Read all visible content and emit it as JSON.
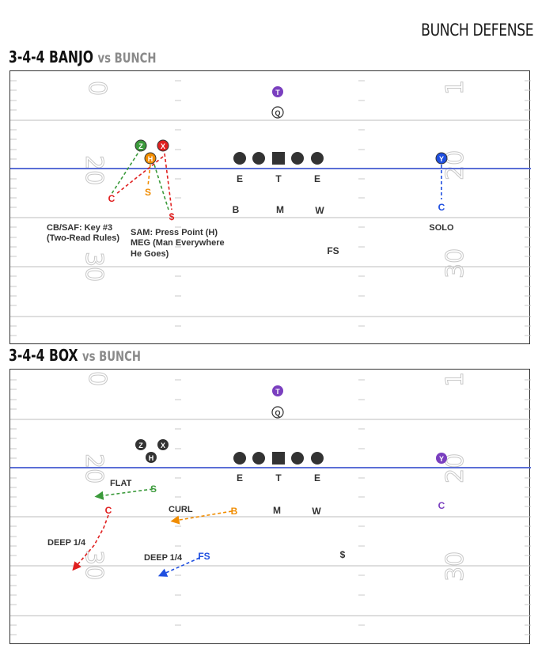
{
  "header": {
    "title": "BUNCH DEFENSE"
  },
  "colors": {
    "los": "#5b6fd6",
    "green": "#3b9a3b",
    "red": "#e02020",
    "orange": "#f08c00",
    "purple": "#7a3fbf",
    "blue": "#1f4fe0",
    "dark": "#333333"
  },
  "panel1": {
    "title_main": "3-4-4 BANJO",
    "title_vs": "vs BUNCH",
    "yard_numbers": [
      "0",
      "20",
      "30",
      "1",
      "20",
      "30"
    ],
    "offense": {
      "T": "T",
      "Q": "Q",
      "Z": "Z",
      "X": "X",
      "H": "H",
      "Y": "Y"
    },
    "front": {
      "E1": "E",
      "T": "T",
      "E2": "E",
      "B": "B",
      "M": "M",
      "W": "W",
      "FS": "FS"
    },
    "assignments": {
      "C_left": "C",
      "S": "S",
      "dollar": "$",
      "C_right": "C"
    },
    "notes": {
      "cb_saf_line1": "CB/SAF: Key #3",
      "cb_saf_line2": "(Two-Read Rules)",
      "sam_line1": "SAM: Press Point (H)",
      "sam_line2": "MEG (Man Everywhere",
      "sam_line3": "He Goes)",
      "solo": "SOLO"
    }
  },
  "panel2": {
    "title_main": "3-4-4 BOX",
    "title_vs": "vs BUNCH",
    "yard_numbers": [
      "0",
      "20",
      "30",
      "1",
      "20",
      "30"
    ],
    "offense": {
      "T": "T",
      "Q": "Q",
      "Z": "Z",
      "X": "X",
      "H": "H",
      "Y": "Y"
    },
    "front": {
      "E1": "E",
      "T": "T",
      "E2": "E",
      "M": "M",
      "W": "W"
    },
    "assignments": {
      "S": "S",
      "C_left": "C",
      "B": "B",
      "FS": "FS",
      "dollar": "$",
      "C_right": "C"
    },
    "notes": {
      "flat": "FLAT",
      "curl": "CURL",
      "deep1": "DEEP 1/4",
      "deep2": "DEEP 1/4"
    }
  }
}
